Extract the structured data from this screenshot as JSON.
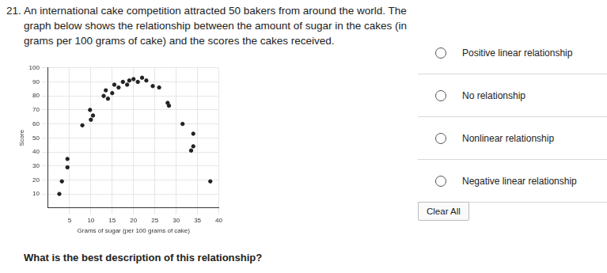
{
  "question": {
    "number": "21.",
    "text": "An international cake competition attracted 50 bakers from around the world. The graph below shows the relationship between the amount of sugar in the cakes (in grams per 100 grams of cake) and the scores the cakes received."
  },
  "chart_data": {
    "type": "scatter",
    "x_label": "Grams of sugar (per 100 grams of cake)",
    "y_label": "Score",
    "x": [
      2.6,
      3.2,
      4.5,
      4.5,
      8,
      9.8,
      10.5,
      10,
      13,
      13.5,
      14,
      15.5,
      16.5,
      15,
      17.5,
      19,
      20,
      21,
      22,
      23,
      24.5,
      18.5,
      26,
      28,
      28.3,
      31.5,
      34,
      34,
      33.5,
      38
    ],
    "values": [
      10,
      19,
      29,
      35,
      59,
      70,
      66,
      63,
      80,
      84,
      78,
      88,
      86,
      82,
      90,
      91,
      92,
      90,
      93,
      91,
      87,
      88,
      86,
      75,
      73,
      60,
      53,
      44,
      41,
      19
    ],
    "color": "#222222",
    "marker": "circle",
    "xlim": [
      0,
      40
    ],
    "xticks": [
      5,
      10,
      15,
      20,
      25,
      30,
      35,
      40
    ],
    "ylim": [
      0,
      100
    ],
    "yticks": [
      10,
      20,
      30,
      40,
      50,
      60,
      70,
      80,
      90,
      100
    ],
    "grid": true
  },
  "options": [
    "Positive linear relationship",
    "No relationship",
    "Nonlinear relationship",
    "Negative linear relationship"
  ],
  "clear": "Clear All",
  "prompt": "What is the best description of this relationship?"
}
